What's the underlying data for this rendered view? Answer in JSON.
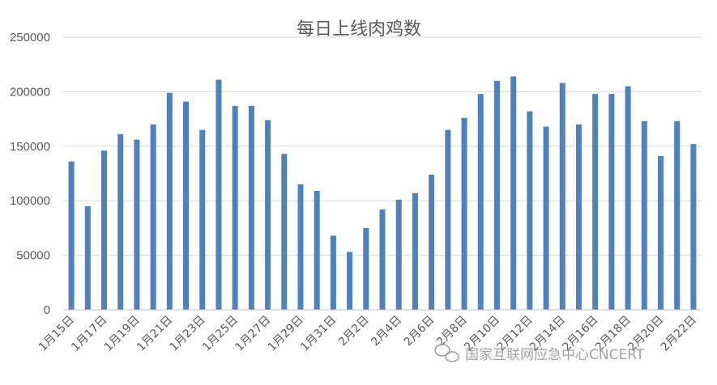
{
  "chart_data": {
    "type": "bar",
    "title": "每日上线肉鸡数",
    "xlabel": "",
    "ylabel": "",
    "ylim": [
      0,
      250000
    ],
    "yticks": [
      0,
      50000,
      100000,
      150000,
      200000,
      250000
    ],
    "grid": true,
    "categories": [
      "1月15日",
      "1月16日",
      "1月17日",
      "1月18日",
      "1月19日",
      "1月20日",
      "1月21日",
      "1月22日",
      "1月23日",
      "1月24日",
      "1月25日",
      "1月26日",
      "1月27日",
      "1月28日",
      "1月29日",
      "1月30日",
      "1月31日",
      "2月1日",
      "2月2日",
      "2月3日",
      "2月4日",
      "2月5日",
      "2月6日",
      "2月7日",
      "2月8日",
      "2月9日",
      "2月10日",
      "2月11日",
      "2月12日",
      "2月13日",
      "2月14日",
      "2月15日",
      "2月16日",
      "2月17日",
      "2月18日",
      "2月19日",
      "2月20日",
      "2月21日",
      "2月22日"
    ],
    "x_tick_labels": [
      "1月15日",
      "1月17日",
      "1月19日",
      "1月21日",
      "1月23日",
      "1月25日",
      "1月27日",
      "1月29日",
      "1月31日",
      "2月2日",
      "2月4日",
      "2月6日",
      "2月8日",
      "2月10日",
      "2月12日",
      "2月14日",
      "2月16日",
      "2月18日",
      "2月20日",
      "2月22日"
    ],
    "values": [
      136000,
      95000,
      146000,
      161000,
      156000,
      170000,
      199000,
      191000,
      165000,
      211000,
      187000,
      187000,
      174000,
      143000,
      115000,
      109000,
      68000,
      53000,
      75000,
      92000,
      101000,
      107000,
      124000,
      165000,
      176000,
      198000,
      210000,
      214000,
      182000,
      168000,
      208000,
      170000,
      198000,
      198000,
      205000,
      173000,
      141000,
      173000,
      152000
    ],
    "bar_color": "#4f81bd"
  },
  "watermark": "国家互联网应急中心CNCERT"
}
